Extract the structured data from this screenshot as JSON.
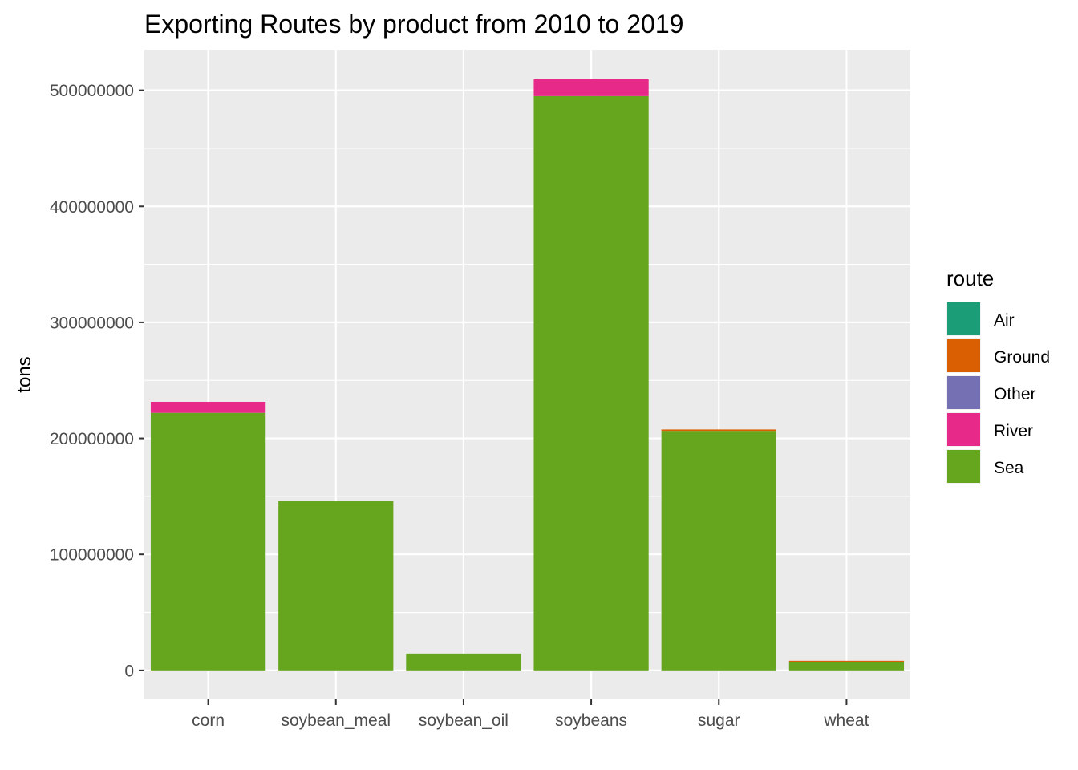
{
  "chart_data": {
    "type": "bar",
    "stacked": true,
    "title": "Exporting Routes by product from 2010 to 2019",
    "xlabel": "",
    "ylabel": "tons",
    "categories": [
      "corn",
      "soybean_meal",
      "soybean_oil",
      "soybeans",
      "sugar",
      "wheat"
    ],
    "ylim": [
      -25000000,
      535000000
    ],
    "yticks": [
      0,
      100000000,
      200000000,
      300000000,
      400000000,
      500000000
    ],
    "ytick_labels": [
      "0",
      "100000000",
      "200000000",
      "300000000",
      "400000000",
      "500000000"
    ],
    "grid": true,
    "legend": {
      "title": "route",
      "position": "right"
    },
    "series": [
      {
        "name": "Sea",
        "color": "#66A61E",
        "values": [
          222000000,
          146000000,
          14500000,
          495000000,
          206500000,
          7500000
        ]
      },
      {
        "name": "River",
        "color": "#E7298A",
        "values": [
          9500000,
          0,
          0,
          14500000,
          0,
          0
        ]
      },
      {
        "name": "Other",
        "color": "#7570B3",
        "values": [
          0,
          0,
          0,
          0,
          0,
          0
        ]
      },
      {
        "name": "Ground",
        "color": "#D95F02",
        "values": [
          0,
          0,
          0,
          0,
          1200000,
          800000
        ]
      },
      {
        "name": "Air",
        "color": "#1B9E77",
        "values": [
          0,
          0,
          0,
          0,
          0,
          0
        ]
      }
    ],
    "legend_order": [
      "Air",
      "Ground",
      "Other",
      "River",
      "Sea"
    ]
  }
}
